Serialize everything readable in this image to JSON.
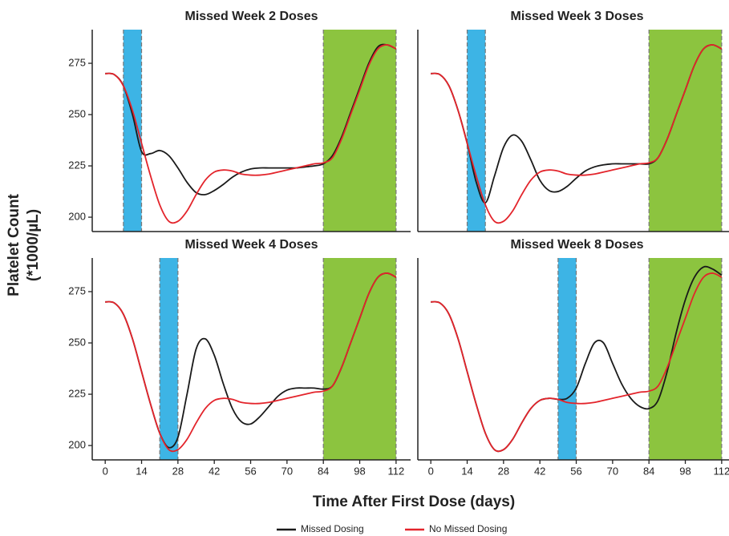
{
  "ylabel": [
    "Platelet Count",
    "(*1000/µL)"
  ],
  "xlabel": "Time After First Dose (days)",
  "chart_data": [
    {
      "type": "line",
      "title": "Missed Week 2 Doses",
      "x": [
        0,
        3.5,
        7,
        10.5,
        14,
        17.5,
        21,
        24.5,
        28,
        31.5,
        35,
        38.5,
        42,
        45.5,
        49,
        52.5,
        56,
        59.5,
        63,
        66.5,
        70,
        73.5,
        77,
        80.5,
        84,
        87.5,
        91,
        94.5,
        98,
        101.5,
        105,
        108.5,
        112
      ],
      "series": [
        {
          "name": "Missed Dosing",
          "color": "#1a1a1a",
          "values": [
            270,
            269.5,
            264,
            250,
            232,
            231,
            232.5,
            230,
            224,
            217,
            212,
            211,
            213,
            216,
            219.5,
            222,
            223.5,
            224,
            224,
            224,
            224,
            224,
            224.5,
            225,
            226,
            230,
            239,
            251,
            263,
            275,
            283,
            284,
            282
          ]
        },
        {
          "name": "No Missed Dosing",
          "color": "#e3242b",
          "values": [
            270,
            269.5,
            264,
            252,
            236,
            220,
            206,
            198,
            198,
            203,
            211,
            218,
            222,
            223,
            222.5,
            221,
            220.5,
            220.5,
            221,
            222,
            223,
            224,
            225,
            226,
            226.5,
            229,
            238,
            250,
            262,
            274,
            282,
            284,
            282
          ]
        }
      ],
      "bands": [
        {
          "xlim": [
            7,
            14
          ],
          "color": "#3db4e5"
        },
        {
          "xlim": [
            84,
            112
          ],
          "color": "#8cc43f"
        }
      ],
      "xlim": [
        -5,
        117.6
      ],
      "ylim": [
        193,
        291.4
      ],
      "yticks": [
        200,
        225,
        250,
        275
      ]
    },
    {
      "type": "line",
      "title": "Missed Week 3 Doses",
      "x": [
        0,
        3.5,
        7,
        10.5,
        14,
        17.5,
        21,
        24.5,
        28,
        31.5,
        35,
        38.5,
        42,
        45.5,
        49,
        52.5,
        56,
        59.5,
        63,
        66.5,
        70,
        73.5,
        77,
        80.5,
        84,
        87.5,
        91,
        94.5,
        98,
        101.5,
        105,
        108.5,
        112
      ],
      "series": [
        {
          "name": "Missed Dosing",
          "color": "#1a1a1a",
          "values": [
            270,
            269.5,
            264,
            252,
            236,
            217,
            207,
            220,
            234,
            240,
            237,
            228,
            218,
            213,
            212.5,
            215,
            219,
            222.5,
            224.5,
            225.5,
            226,
            226,
            226,
            226,
            226,
            229,
            238,
            250,
            262,
            274,
            282,
            284,
            282
          ]
        },
        {
          "name": "No Missed Dosing",
          "color": "#e3242b",
          "values": [
            270,
            269.5,
            264,
            252,
            236,
            220,
            206,
            198,
            198,
            203,
            211,
            218,
            222,
            223,
            222.5,
            221,
            220.5,
            220.5,
            221,
            222,
            223,
            224,
            225,
            226,
            226.5,
            229,
            238,
            250,
            262,
            274,
            282,
            284,
            282
          ]
        }
      ],
      "bands": [
        {
          "xlim": [
            14,
            21
          ],
          "color": "#3db4e5"
        },
        {
          "xlim": [
            84,
            112
          ],
          "color": "#8cc43f"
        }
      ],
      "xlim": [
        -5,
        117.6
      ],
      "ylim": [
        193,
        291.4
      ]
    },
    {
      "type": "line",
      "title": "Missed Week 4 Doses",
      "x": [
        0,
        3.5,
        7,
        10.5,
        14,
        17.5,
        21,
        24.5,
        28,
        31.5,
        35,
        38.5,
        42,
        45.5,
        49,
        52.5,
        56,
        59.5,
        63,
        66.5,
        70,
        73.5,
        77,
        80.5,
        84,
        87.5,
        91,
        94.5,
        98,
        101.5,
        105,
        108.5,
        112
      ],
      "series": [
        {
          "name": "Missed Dosing",
          "color": "#1a1a1a",
          "values": [
            270,
            269.5,
            264,
            252,
            236,
            220,
            206,
            199,
            204,
            225,
            247,
            252,
            244,
            230,
            218,
            211.5,
            210.5,
            214,
            219,
            224,
            227,
            228,
            228,
            228,
            227.5,
            229,
            238,
            250,
            262,
            274,
            282,
            284,
            282
          ]
        },
        {
          "name": "No Missed Dosing",
          "color": "#e3242b",
          "values": [
            270,
            269.5,
            264,
            252,
            236,
            220,
            206,
            198,
            198,
            203,
            211,
            218,
            222,
            223,
            222.5,
            221,
            220.5,
            220.5,
            221,
            222,
            223,
            224,
            225,
            226,
            226.5,
            229,
            238,
            250,
            262,
            274,
            282,
            284,
            282
          ]
        }
      ],
      "bands": [
        {
          "xlim": [
            21,
            28
          ],
          "color": "#3db4e5"
        },
        {
          "xlim": [
            84,
            112
          ],
          "color": "#8cc43f"
        }
      ],
      "xlim": [
        -5,
        117.6
      ],
      "ylim": [
        193,
        291.4
      ],
      "yticks": [
        200,
        225,
        250,
        275
      ],
      "xticks": [
        0,
        14,
        28,
        42,
        56,
        70,
        84,
        98,
        112
      ]
    },
    {
      "type": "line",
      "title": "Missed Week 8 Doses",
      "x": [
        0,
        3.5,
        7,
        10.5,
        14,
        17.5,
        21,
        24.5,
        28,
        31.5,
        35,
        38.5,
        42,
        45.5,
        49,
        52.5,
        56,
        59.5,
        63,
        66.5,
        70,
        73.5,
        77,
        80.5,
        84,
        87.5,
        91,
        94.5,
        98,
        101.5,
        105,
        108.5,
        112
      ],
      "series": [
        {
          "name": "Missed Dosing",
          "color": "#1a1a1a",
          "values": [
            270,
            269.5,
            264,
            252,
            236,
            220,
            206,
            198,
            198,
            203,
            211,
            218,
            222,
            223,
            222.5,
            223,
            228,
            240,
            250,
            250,
            240,
            230,
            223,
            219,
            218,
            222,
            236,
            255,
            271,
            282,
            287,
            286,
            283
          ]
        },
        {
          "name": "No Missed Dosing",
          "color": "#e3242b",
          "values": [
            270,
            269.5,
            264,
            252,
            236,
            220,
            206,
            198,
            198,
            203,
            211,
            218,
            222,
            223,
            222.5,
            221,
            220.5,
            220.5,
            221,
            222,
            223,
            224,
            225,
            226,
            226.5,
            229,
            238,
            250,
            262,
            274,
            282,
            284,
            282
          ]
        }
      ],
      "bands": [
        {
          "xlim": [
            49,
            56
          ],
          "color": "#3db4e5"
        },
        {
          "xlim": [
            84,
            112
          ],
          "color": "#8cc43f"
        }
      ],
      "xlim": [
        -5,
        117.6
      ],
      "ylim": [
        193,
        291.4
      ],
      "xticks": [
        0,
        14,
        28,
        42,
        56,
        70,
        84,
        98,
        112
      ]
    }
  ]
}
